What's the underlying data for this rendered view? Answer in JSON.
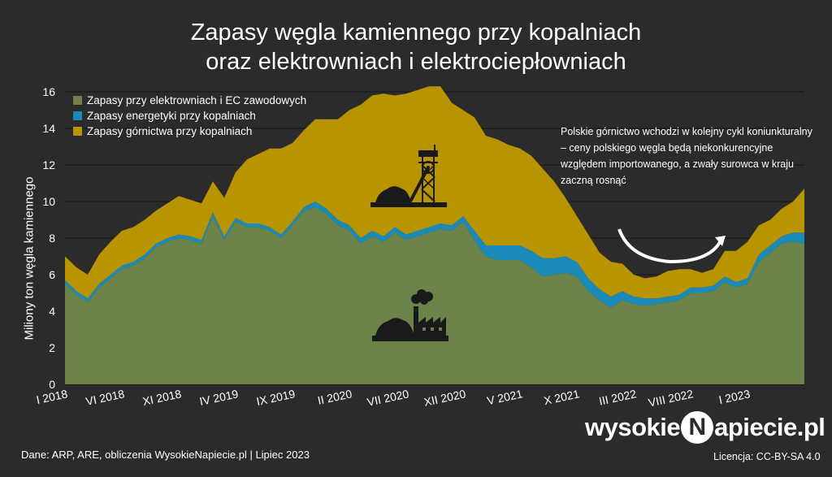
{
  "chart_data": {
    "type": "area",
    "stacked": true,
    "title_line1": "Zapasy węgla kamiennego przy kopalniach",
    "title_line2": "oraz elektrowniach i elektrociepłowniach",
    "ylabel": "Miliony ton węgla kamiennego",
    "ylim": [
      0,
      16
    ],
    "yticks": [
      0,
      2,
      4,
      6,
      8,
      10,
      12,
      14,
      16
    ],
    "grid": true,
    "legend_position": "top-left",
    "x_start": "2018-01",
    "x_end": "2023-06",
    "xtick_labels": [
      {
        "label": "I 2018",
        "index": 0
      },
      {
        "label": "VI 2018",
        "index": 5
      },
      {
        "label": "XI 2018",
        "index": 10
      },
      {
        "label": "IV 2019",
        "index": 15
      },
      {
        "label": "IX 2019",
        "index": 20
      },
      {
        "label": "II 2020",
        "index": 25
      },
      {
        "label": "VII 2020",
        "index": 30
      },
      {
        "label": "XII 2020",
        "index": 35
      },
      {
        "label": "V 2021",
        "index": 40
      },
      {
        "label": "X 2021",
        "index": 45
      },
      {
        "label": "III 2022",
        "index": 50
      },
      {
        "label": "VIII 2022",
        "index": 55
      },
      {
        "label": "I 2023",
        "index": 60
      }
    ],
    "series": [
      {
        "name": "Zapasy przy elektrowniach i EC zawodowych",
        "color": "#6b8348",
        "values": [
          5.5,
          4.9,
          4.5,
          5.3,
          5.8,
          6.3,
          6.5,
          6.9,
          7.5,
          7.8,
          8.0,
          7.9,
          7.7,
          9.2,
          7.9,
          8.9,
          8.6,
          8.6,
          8.4,
          8.0,
          8.7,
          9.5,
          9.7,
          9.3,
          8.7,
          8.4,
          7.7,
          8.1,
          7.8,
          8.3,
          7.9,
          8.1,
          8.3,
          8.5,
          8.4,
          8.9,
          7.9,
          7.0,
          6.8,
          6.8,
          6.8,
          6.4,
          5.9,
          6.0,
          6.1,
          5.9,
          5.1,
          4.6,
          4.2,
          4.6,
          4.4,
          4.3,
          4.4,
          4.5,
          4.6,
          5.0,
          5.0,
          5.1,
          5.6,
          5.3,
          5.5,
          6.7,
          7.2,
          7.7,
          7.8,
          7.7
        ]
      },
      {
        "name": "Zapasy energetyki przy kopalniach",
        "color": "#1a8ab8",
        "values": [
          0.2,
          0.2,
          0.2,
          0.2,
          0.2,
          0.2,
          0.2,
          0.2,
          0.2,
          0.2,
          0.2,
          0.2,
          0.2,
          0.2,
          0.2,
          0.2,
          0.2,
          0.2,
          0.2,
          0.2,
          0.2,
          0.2,
          0.3,
          0.3,
          0.3,
          0.3,
          0.3,
          0.3,
          0.3,
          0.3,
          0.3,
          0.3,
          0.3,
          0.3,
          0.3,
          0.3,
          0.5,
          0.6,
          0.8,
          0.8,
          0.8,
          0.9,
          1.0,
          0.9,
          0.9,
          0.8,
          0.7,
          0.6,
          0.6,
          0.5,
          0.4,
          0.4,
          0.3,
          0.3,
          0.3,
          0.3,
          0.3,
          0.3,
          0.3,
          0.3,
          0.3,
          0.4,
          0.4,
          0.4,
          0.5,
          0.6
        ]
      },
      {
        "name": "Zapasy górnictwa przy kopalniach",
        "color": "#b89400",
        "values": [
          1.3,
          1.3,
          1.3,
          1.6,
          1.8,
          1.9,
          1.9,
          1.9,
          1.8,
          1.9,
          2.1,
          2.0,
          2.0,
          1.7,
          2.1,
          2.5,
          3.5,
          3.8,
          4.3,
          4.7,
          4.3,
          4.2,
          4.5,
          4.9,
          5.5,
          6.3,
          7.3,
          7.4,
          7.8,
          7.2,
          7.7,
          7.7,
          7.7,
          7.5,
          6.7,
          5.8,
          6.2,
          6.0,
          5.8,
          5.5,
          5.3,
          5.2,
          4.9,
          4.2,
          3.2,
          2.5,
          2.4,
          2.0,
          1.9,
          1.5,
          1.2,
          1.1,
          1.2,
          1.4,
          1.4,
          1.0,
          0.8,
          0.9,
          1.4,
          1.7,
          2.0,
          1.6,
          1.4,
          1.5,
          1.7,
          2.4
        ]
      }
    ],
    "annotation": "Polskie górnictwo wchodzi w kolejny cykl koniunkturalny – ceny polskiego węgla będą niekonkurencyjne względem importowanego, a zwały surowca w kraju zaczną rosnąć",
    "colors": {
      "background": "#2b2b2b",
      "grid": "#1a1a1a",
      "text": "#ffffff"
    }
  },
  "footer": {
    "source": "Dane: ARP, ARE, obliczenia WysokieNapiecie.pl  |  Lipiec 2023",
    "brand_part1": "wysokie",
    "brand_mark": "N",
    "brand_part2": "apiecie.pl",
    "license": "Licencja: CC-BY-SA 4.0"
  },
  "icons": [
    "coal-mine-icon",
    "power-plant-icon",
    "trend-arrow-icon"
  ]
}
